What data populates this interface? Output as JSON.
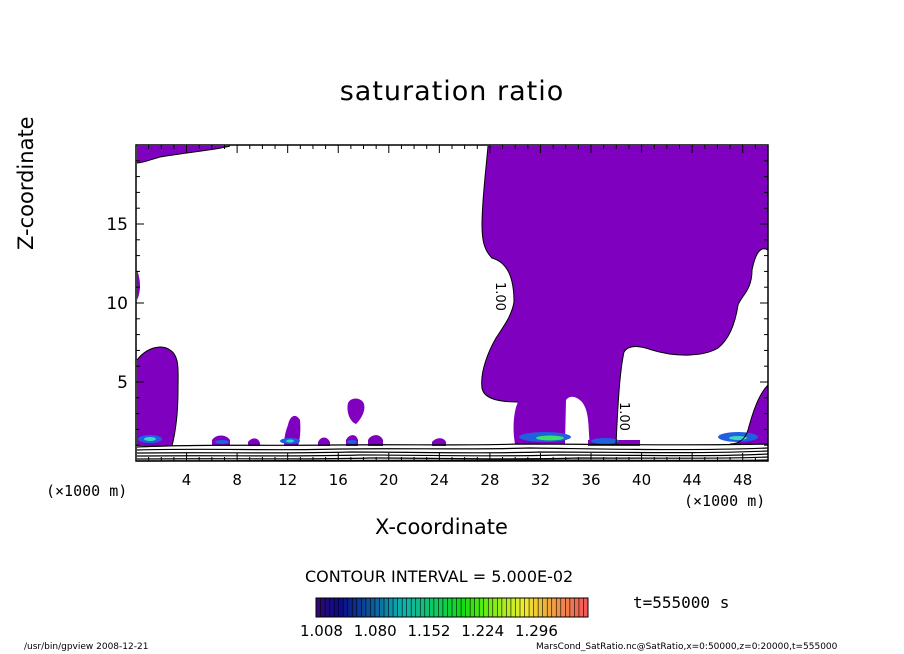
{
  "chart_data": {
    "type": "contour",
    "title": "saturation ratio",
    "xlabel": "X-coordinate",
    "ylabel": "Z-coordinate",
    "x_unit_label": "(×1000 m)",
    "xlim": [
      0,
      50
    ],
    "ylim": [
      0,
      20
    ],
    "x_ticks": [
      "4",
      "8",
      "12",
      "16",
      "20",
      "24",
      "28",
      "32",
      "36",
      "40",
      "44",
      "48"
    ],
    "y_ticks": [
      "5",
      "10",
      "15"
    ],
    "contour_interval_text": "CONTOUR INTERVAL = 5.000E-02",
    "contour_labels": [
      "1.00",
      "1.00"
    ],
    "colorbar_ticks": [
      "1.008",
      "1.080",
      "1.152",
      "1.224",
      "1.296"
    ],
    "time_label": "t=555000 s",
    "fill_color": "#7f00bf"
  },
  "footer": {
    "left": "/usr/bin/gpview  2008-12-21",
    "right": "MarsCond_SatRatio.nc@SatRatio,x=0:50000,z=0:20000,t=555000"
  }
}
